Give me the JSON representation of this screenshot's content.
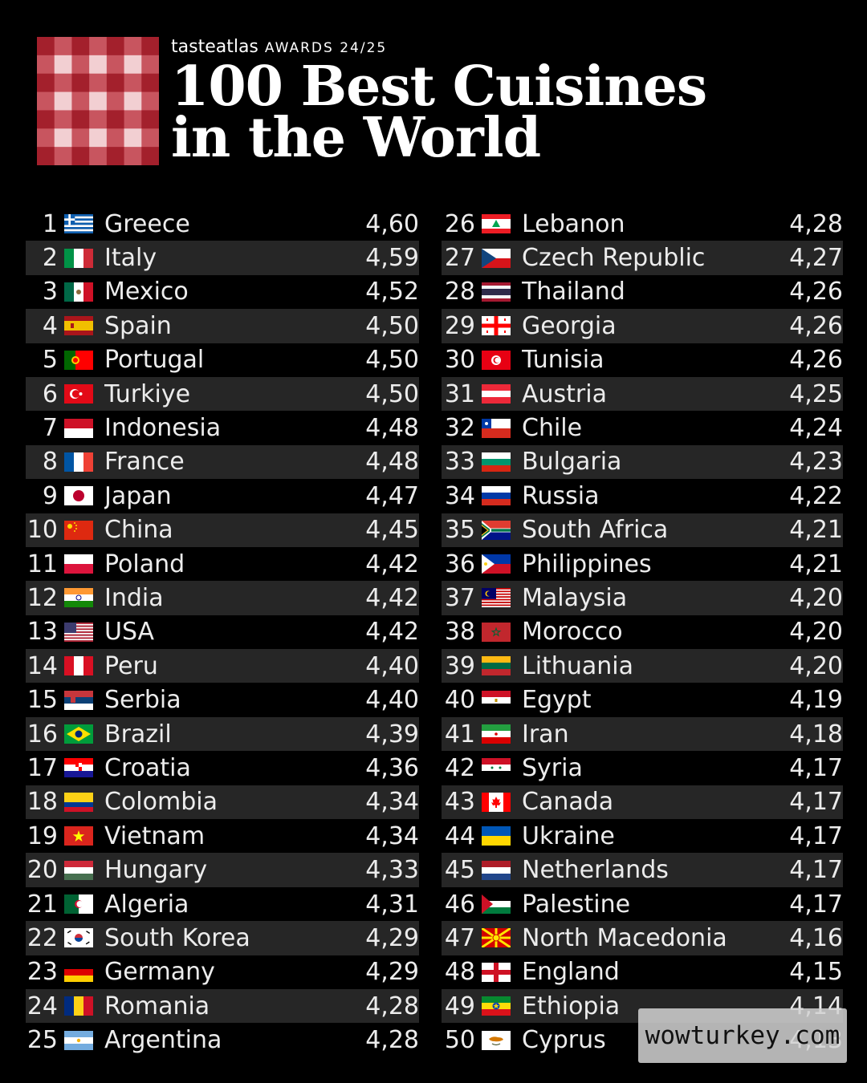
{
  "header": {
    "brand": "tasteatlas",
    "award": "AWARDS 24/25",
    "title_line1": "100 Best Cuisines",
    "title_line2": "in the World"
  },
  "logo_colors": {
    "dark": "#a3202c",
    "mid": "#c8555f",
    "light": "#f2cfd2"
  },
  "rankings": [
    {
      "rank": "1",
      "country": "Greece",
      "score": "4,60",
      "flag": "greece"
    },
    {
      "rank": "2",
      "country": "Italy",
      "score": "4,59",
      "flag": "italy"
    },
    {
      "rank": "3",
      "country": "Mexico",
      "score": "4,52",
      "flag": "mexico"
    },
    {
      "rank": "4",
      "country": "Spain",
      "score": "4,50",
      "flag": "spain"
    },
    {
      "rank": "5",
      "country": "Portugal",
      "score": "4,50",
      "flag": "portugal"
    },
    {
      "rank": "6",
      "country": "Turkiye",
      "score": "4,50",
      "flag": "turkiye"
    },
    {
      "rank": "7",
      "country": "Indonesia",
      "score": "4,48",
      "flag": "indonesia"
    },
    {
      "rank": "8",
      "country": "France",
      "score": "4,48",
      "flag": "france"
    },
    {
      "rank": "9",
      "country": "Japan",
      "score": "4,47",
      "flag": "japan"
    },
    {
      "rank": "10",
      "country": "China",
      "score": "4,45",
      "flag": "china"
    },
    {
      "rank": "11",
      "country": "Poland",
      "score": "4,42",
      "flag": "poland"
    },
    {
      "rank": "12",
      "country": "India",
      "score": "4,42",
      "flag": "india"
    },
    {
      "rank": "13",
      "country": "USA",
      "score": "4,42",
      "flag": "usa"
    },
    {
      "rank": "14",
      "country": "Peru",
      "score": "4,40",
      "flag": "peru"
    },
    {
      "rank": "15",
      "country": "Serbia",
      "score": "4,40",
      "flag": "serbia"
    },
    {
      "rank": "16",
      "country": "Brazil",
      "score": "4,39",
      "flag": "brazil"
    },
    {
      "rank": "17",
      "country": "Croatia",
      "score": "4,36",
      "flag": "croatia"
    },
    {
      "rank": "18",
      "country": "Colombia",
      "score": "4,34",
      "flag": "colombia"
    },
    {
      "rank": "19",
      "country": "Vietnam",
      "score": "4,34",
      "flag": "vietnam"
    },
    {
      "rank": "20",
      "country": "Hungary",
      "score": "4,33",
      "flag": "hungary"
    },
    {
      "rank": "21",
      "country": "Algeria",
      "score": "4,31",
      "flag": "algeria"
    },
    {
      "rank": "22",
      "country": "South Korea",
      "score": "4,29",
      "flag": "southkorea"
    },
    {
      "rank": "23",
      "country": "Germany",
      "score": "4,29",
      "flag": "germany"
    },
    {
      "rank": "24",
      "country": "Romania",
      "score": "4,28",
      "flag": "romania"
    },
    {
      "rank": "25",
      "country": "Argentina",
      "score": "4,28",
      "flag": "argentina"
    },
    {
      "rank": "26",
      "country": "Lebanon",
      "score": "4,28",
      "flag": "lebanon"
    },
    {
      "rank": "27",
      "country": "Czech Republic",
      "score": "4,27",
      "flag": "czech"
    },
    {
      "rank": "28",
      "country": "Thailand",
      "score": "4,26",
      "flag": "thailand"
    },
    {
      "rank": "29",
      "country": "Georgia",
      "score": "4,26",
      "flag": "georgia"
    },
    {
      "rank": "30",
      "country": "Tunisia",
      "score": "4,26",
      "flag": "tunisia"
    },
    {
      "rank": "31",
      "country": "Austria",
      "score": "4,25",
      "flag": "austria"
    },
    {
      "rank": "32",
      "country": "Chile",
      "score": "4,24",
      "flag": "chile"
    },
    {
      "rank": "33",
      "country": "Bulgaria",
      "score": "4,23",
      "flag": "bulgaria"
    },
    {
      "rank": "34",
      "country": "Russia",
      "score": "4,22",
      "flag": "russia"
    },
    {
      "rank": "35",
      "country": "South Africa",
      "score": "4,21",
      "flag": "southafrica"
    },
    {
      "rank": "36",
      "country": "Philippines",
      "score": "4,21",
      "flag": "philippines"
    },
    {
      "rank": "37",
      "country": "Malaysia",
      "score": "4,20",
      "flag": "malaysia"
    },
    {
      "rank": "38",
      "country": "Morocco",
      "score": "4,20",
      "flag": "morocco"
    },
    {
      "rank": "39",
      "country": "Lithuania",
      "score": "4,20",
      "flag": "lithuania"
    },
    {
      "rank": "40",
      "country": "Egypt",
      "score": "4,19",
      "flag": "egypt"
    },
    {
      "rank": "41",
      "country": "Iran",
      "score": "4,18",
      "flag": "iran"
    },
    {
      "rank": "42",
      "country": "Syria",
      "score": "4,17",
      "flag": "syria"
    },
    {
      "rank": "43",
      "country": "Canada",
      "score": "4,17",
      "flag": "canada"
    },
    {
      "rank": "44",
      "country": "Ukraine",
      "score": "4,17",
      "flag": "ukraine"
    },
    {
      "rank": "45",
      "country": "Netherlands",
      "score": "4,17",
      "flag": "netherlands"
    },
    {
      "rank": "46",
      "country": "Palestine",
      "score": "4,17",
      "flag": "palestine"
    },
    {
      "rank": "47",
      "country": "North Macedonia",
      "score": "4,16",
      "flag": "northmacedonia"
    },
    {
      "rank": "48",
      "country": "England",
      "score": "4,15",
      "flag": "england"
    },
    {
      "rank": "49",
      "country": "Ethiopia",
      "score": "4,14",
      "flag": "ethiopia"
    },
    {
      "rank": "50",
      "country": "Cyprus",
      "score": "4,13",
      "flag": "cyprus"
    }
  ],
  "watermark": "wowturkey.com"
}
